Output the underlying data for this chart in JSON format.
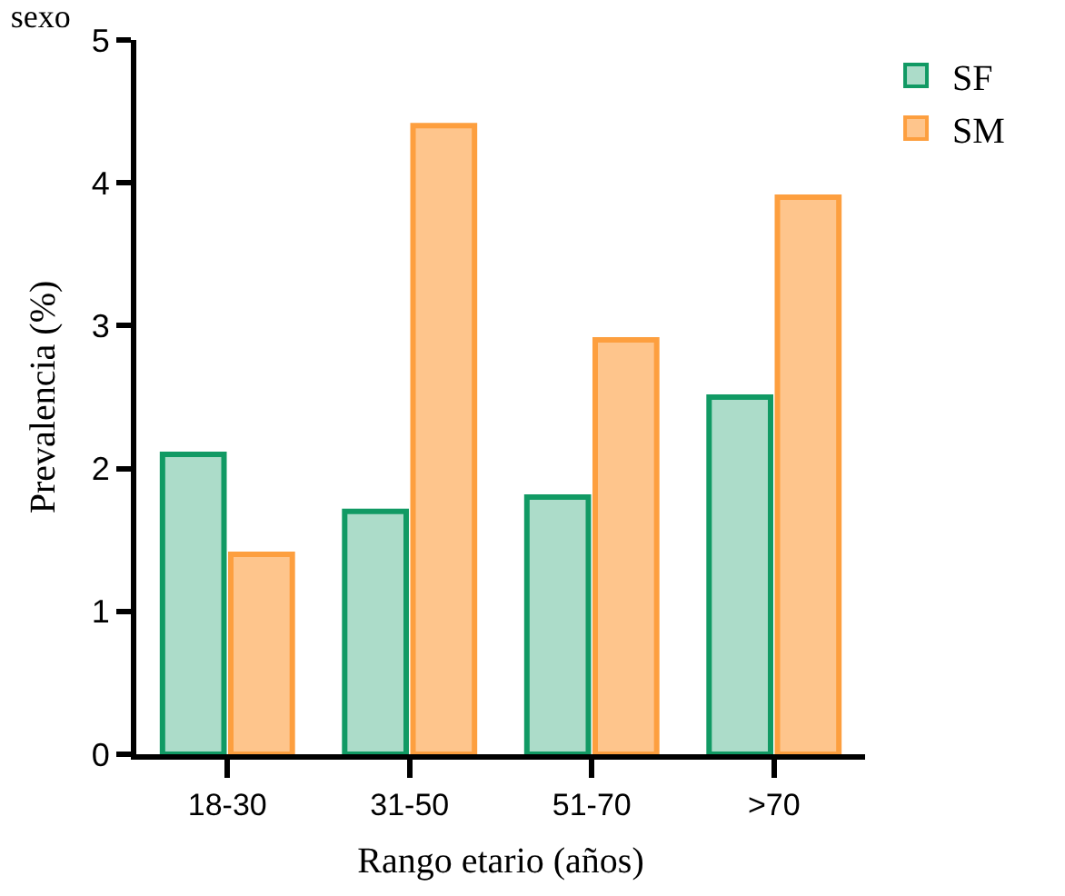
{
  "chart_data": {
    "type": "bar",
    "title": "sexo",
    "xlabel": "Rango etario (años)",
    "ylabel": "Prevalencia (%)",
    "categories": [
      "18-30",
      "31-50",
      "51-70",
      ">70"
    ],
    "series": [
      {
        "name": "SF",
        "color": "#119a64",
        "values": [
          2.1,
          1.7,
          1.8,
          2.5
        ]
      },
      {
        "name": "SM",
        "color": "#fd9f3f",
        "values": [
          1.4,
          4.4,
          2.9,
          3.9
        ]
      }
    ],
    "ylim": [
      0,
      5
    ],
    "yticks": [
      0,
      1,
      2,
      3,
      4,
      5
    ],
    "legend": "top right"
  }
}
